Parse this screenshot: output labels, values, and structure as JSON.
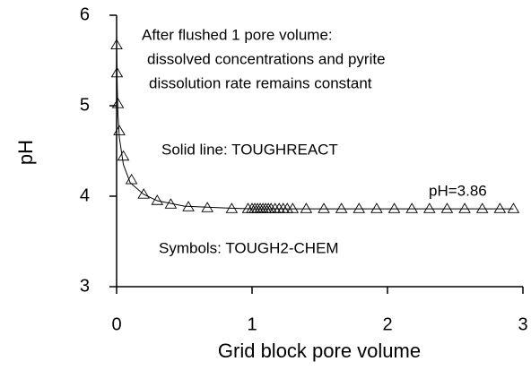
{
  "chart_data": {
    "type": "line",
    "xlabel": "Grid block pore volume",
    "ylabel": "pH",
    "annotations": [
      "After flushed 1 pore volume:",
      "dissolved concentrations and pyrite",
      "dissolution rate remains constant",
      "Solid line: TOUGHREACT",
      "Symbols: TOUGH2-CHEM",
      "pH=3.86"
    ],
    "xlim": [
      0,
      3
    ],
    "xticks": [
      0,
      1,
      2,
      3
    ],
    "ylim": [
      3,
      6
    ],
    "yticks": [
      3,
      4,
      5,
      6
    ],
    "series": [
      {
        "name": "TOUGHREACT",
        "style": "line",
        "color": "#000000",
        "x": [
          0,
          0.005,
          0.01,
          0.02,
          0.05,
          0.1,
          0.2,
          0.3,
          0.5,
          0.8,
          1.0,
          2.0,
          2.93
        ],
        "values": [
          5.7,
          5.2,
          4.9,
          4.65,
          4.35,
          4.15,
          4.02,
          3.95,
          3.89,
          3.87,
          3.86,
          3.86,
          3.86
        ]
      },
      {
        "name": "TOUGH2-CHEM",
        "style": "triangle",
        "color": "#000000",
        "x": [
          0,
          0.003,
          0.01,
          0.02,
          0.05,
          0.11,
          0.2,
          0.3,
          0.4,
          0.53,
          0.67,
          0.85,
          0.97,
          1.0,
          1.02,
          1.04,
          1.06,
          1.08,
          1.1,
          1.12,
          1.14,
          1.17,
          1.2,
          1.23,
          1.26,
          1.3,
          1.4,
          1.53,
          1.66,
          1.79,
          1.92,
          2.05,
          2.18,
          2.31,
          2.44,
          2.57,
          2.7,
          2.83,
          2.93
        ],
        "values": [
          5.67,
          5.36,
          5.02,
          4.72,
          4.44,
          4.18,
          4.02,
          3.95,
          3.91,
          3.88,
          3.87,
          3.86,
          3.86,
          3.86,
          3.86,
          3.86,
          3.86,
          3.86,
          3.86,
          3.86,
          3.86,
          3.86,
          3.86,
          3.86,
          3.86,
          3.86,
          3.86,
          3.86,
          3.86,
          3.86,
          3.86,
          3.86,
          3.86,
          3.86,
          3.86,
          3.86,
          3.86,
          3.86,
          3.86
        ]
      }
    ]
  }
}
